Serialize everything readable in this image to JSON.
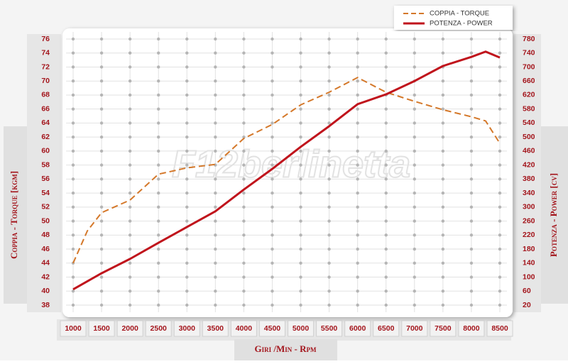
{
  "chart_data": {
    "type": "line",
    "legend": "top-right",
    "watermark": "F12berlinetta",
    "y_label": "Coppia - Torque [kgm]",
    "y2_label": "Potenza - Power [cv]",
    "x_label": "Giri /Min - Rpm",
    "x": [
      1000,
      1250,
      1500,
      2000,
      2500,
      3000,
      3500,
      4000,
      4500,
      5000,
      5500,
      6000,
      6500,
      7000,
      7500,
      8000,
      8250,
      8500
    ],
    "series": [
      {
        "name": "COPPIA - TORQUE",
        "color": "#d4782a",
        "dashed": true,
        "axis": "y",
        "values": [
          44,
          48.6,
          51.2,
          53,
          56.7,
          57.6,
          58.1,
          61.8,
          63.8,
          66.6,
          68.4,
          70.5,
          68.4,
          67.1,
          65.9,
          64.9,
          64.3,
          61.1
        ]
      },
      {
        "name": "POTENZA - POWER",
        "color": "#c0141c",
        "dashed": false,
        "axis": "y2",
        "values": [
          65,
          88,
          111,
          152,
          198,
          243,
          288,
          350,
          409,
          472,
          531,
          594,
          622,
          660,
          703,
          729,
          744,
          727
        ]
      }
    ],
    "xlim": [
      1000,
      8500
    ],
    "xticks": [
      1000,
      1500,
      2000,
      2500,
      3000,
      3500,
      4000,
      4500,
      5000,
      5500,
      6000,
      6500,
      7000,
      7500,
      8000,
      8500
    ],
    "ylim": [
      38,
      76
    ],
    "yticks": [
      38,
      40,
      42,
      44,
      46,
      48,
      50,
      52,
      54,
      56,
      58,
      60,
      62,
      64,
      66,
      68,
      70,
      72,
      74,
      76
    ],
    "y2lim": [
      20,
      780
    ],
    "y2ticks": [
      20,
      60,
      100,
      140,
      180,
      220,
      260,
      300,
      340,
      380,
      420,
      460,
      500,
      540,
      580,
      620,
      660,
      700,
      740,
      780
    ],
    "grid": true
  }
}
